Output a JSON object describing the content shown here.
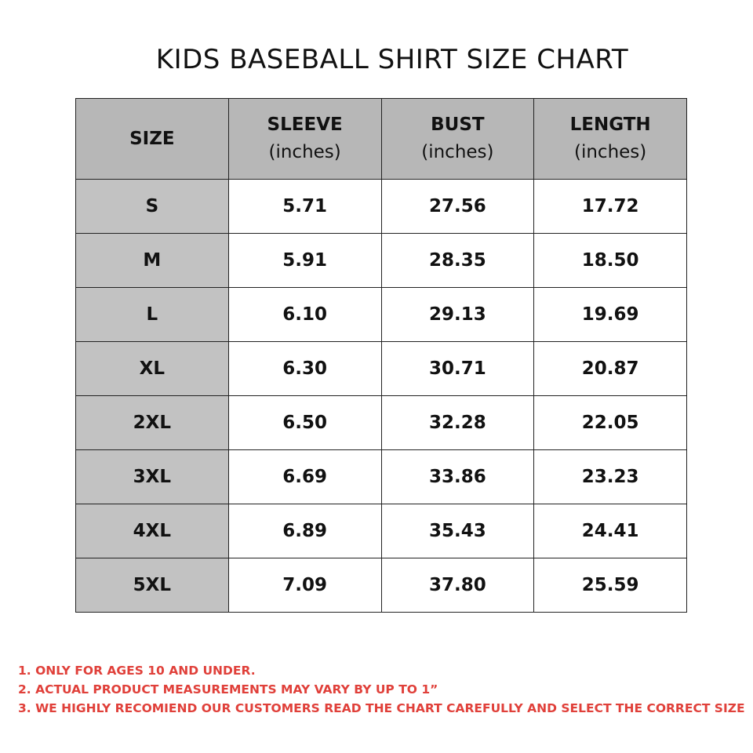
{
  "title": "KIDS BASEBALL SHIRT SIZE CHART",
  "table": {
    "headers": [
      {
        "label": "SIZE",
        "unit": ""
      },
      {
        "label": "SLEEVE",
        "unit": "(inches)"
      },
      {
        "label": "BUST",
        "unit": "(inches)"
      },
      {
        "label": "LENGTH",
        "unit": "(inches)"
      }
    ],
    "rows": [
      [
        "S",
        "5.71",
        "27.56",
        "17.72"
      ],
      [
        "M",
        "5.91",
        "28.35",
        "18.50"
      ],
      [
        "L",
        "6.10",
        "29.13",
        "19.69"
      ],
      [
        "XL",
        "6.30",
        "30.71",
        "20.87"
      ],
      [
        "2XL",
        "6.50",
        "32.28",
        "22.05"
      ],
      [
        "3XL",
        "6.69",
        "33.86",
        "23.23"
      ],
      [
        "4XL",
        "6.89",
        "35.43",
        "24.41"
      ],
      [
        "5XL",
        "7.09",
        "37.80",
        "25.59"
      ]
    ]
  },
  "notes": [
    "1. ONLY FOR AGES 10 AND UNDER.",
    "2. ACTUAL PRODUCT MEASUREMENTS MAY VARY BY UP TO 1”",
    "3. WE HIGHLY RECOMIEND OUR CUSTOMERS READ THE CHART CAREFULLY AND SELECT THE CORRECT SIZE"
  ],
  "colors": {
    "header_bg": "#b7b7b7",
    "size_col_bg": "#c2c2c2",
    "note_text": "#e0403a",
    "border": "#222222"
  }
}
